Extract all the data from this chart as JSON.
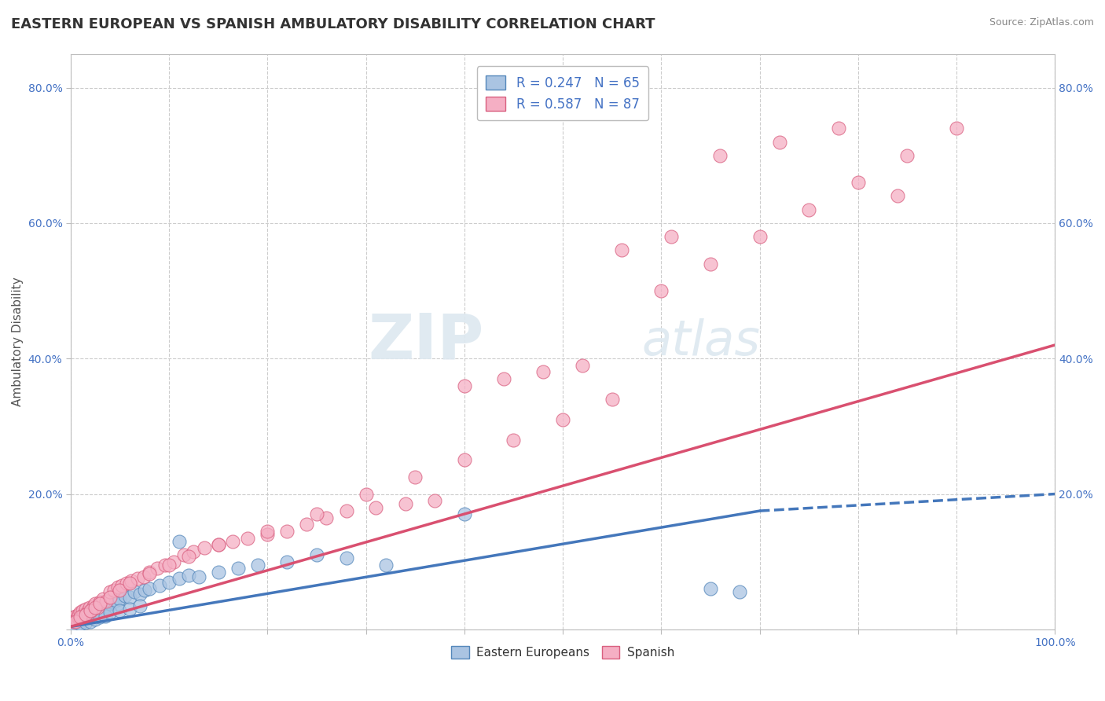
{
  "title": "EASTERN EUROPEAN VS SPANISH AMBULATORY DISABILITY CORRELATION CHART",
  "source": "Source: ZipAtlas.com",
  "ylabel": "Ambulatory Disability",
  "xlim": [
    0,
    1.0
  ],
  "ylim": [
    0,
    0.85
  ],
  "x_ticks": [
    0.0,
    0.1,
    0.2,
    0.3,
    0.4,
    0.5,
    0.6,
    0.7,
    0.8,
    0.9,
    1.0
  ],
  "x_tick_labels": [
    "0.0%",
    "",
    "",
    "",
    "",
    "",
    "",
    "",
    "",
    "",
    "100.0%"
  ],
  "y_ticks": [
    0.0,
    0.2,
    0.4,
    0.6,
    0.8
  ],
  "y_tick_labels": [
    "",
    "20.0%",
    "40.0%",
    "60.0%",
    "80.0%"
  ],
  "blue_R": 0.247,
  "blue_N": 65,
  "pink_R": 0.587,
  "pink_N": 87,
  "blue_color": "#aac4e2",
  "pink_color": "#f5afc4",
  "blue_edge_color": "#5588bb",
  "pink_edge_color": "#d96080",
  "blue_line_color": "#4477bb",
  "pink_line_color": "#d95070",
  "blue_scatter_x": [
    0.002,
    0.003,
    0.004,
    0.005,
    0.006,
    0.007,
    0.008,
    0.009,
    0.01,
    0.011,
    0.012,
    0.013,
    0.014,
    0.015,
    0.016,
    0.017,
    0.018,
    0.019,
    0.02,
    0.022,
    0.024,
    0.026,
    0.028,
    0.03,
    0.032,
    0.035,
    0.038,
    0.04,
    0.042,
    0.045,
    0.048,
    0.05,
    0.055,
    0.06,
    0.065,
    0.07,
    0.075,
    0.08,
    0.09,
    0.1,
    0.11,
    0.12,
    0.13,
    0.15,
    0.17,
    0.19,
    0.22,
    0.25,
    0.28,
    0.32,
    0.005,
    0.01,
    0.015,
    0.02,
    0.025,
    0.03,
    0.035,
    0.04,
    0.05,
    0.06,
    0.07,
    0.11,
    0.4,
    0.65,
    0.68
  ],
  "blue_scatter_y": [
    0.01,
    0.008,
    0.012,
    0.015,
    0.01,
    0.012,
    0.014,
    0.01,
    0.018,
    0.016,
    0.02,
    0.015,
    0.018,
    0.022,
    0.016,
    0.02,
    0.025,
    0.018,
    0.022,
    0.025,
    0.028,
    0.03,
    0.025,
    0.032,
    0.028,
    0.035,
    0.03,
    0.038,
    0.04,
    0.042,
    0.038,
    0.045,
    0.05,
    0.048,
    0.055,
    0.052,
    0.058,
    0.06,
    0.065,
    0.07,
    0.075,
    0.08,
    0.078,
    0.085,
    0.09,
    0.095,
    0.1,
    0.11,
    0.105,
    0.095,
    0.005,
    0.008,
    0.01,
    0.012,
    0.015,
    0.018,
    0.02,
    0.025,
    0.028,
    0.03,
    0.035,
    0.13,
    0.17,
    0.06,
    0.055
  ],
  "pink_scatter_x": [
    0.002,
    0.003,
    0.004,
    0.005,
    0.006,
    0.007,
    0.008,
    0.009,
    0.01,
    0.011,
    0.012,
    0.013,
    0.015,
    0.017,
    0.019,
    0.021,
    0.023,
    0.025,
    0.027,
    0.03,
    0.033,
    0.036,
    0.04,
    0.044,
    0.048,
    0.052,
    0.057,
    0.062,
    0.068,
    0.074,
    0.08,
    0.088,
    0.096,
    0.105,
    0.115,
    0.125,
    0.136,
    0.15,
    0.165,
    0.18,
    0.2,
    0.22,
    0.24,
    0.26,
    0.28,
    0.31,
    0.34,
    0.37,
    0.4,
    0.44,
    0.48,
    0.52,
    0.56,
    0.61,
    0.66,
    0.72,
    0.78,
    0.84,
    0.005,
    0.01,
    0.015,
    0.02,
    0.025,
    0.03,
    0.04,
    0.05,
    0.06,
    0.08,
    0.1,
    0.12,
    0.15,
    0.2,
    0.25,
    0.3,
    0.35,
    0.4,
    0.45,
    0.5,
    0.55,
    0.6,
    0.65,
    0.7,
    0.75,
    0.8,
    0.85,
    0.9
  ],
  "pink_scatter_y": [
    0.015,
    0.012,
    0.018,
    0.02,
    0.015,
    0.018,
    0.022,
    0.016,
    0.025,
    0.02,
    0.028,
    0.022,
    0.03,
    0.025,
    0.032,
    0.028,
    0.035,
    0.038,
    0.032,
    0.04,
    0.045,
    0.042,
    0.055,
    0.058,
    0.062,
    0.065,
    0.068,
    0.072,
    0.075,
    0.078,
    0.085,
    0.09,
    0.095,
    0.1,
    0.11,
    0.115,
    0.12,
    0.125,
    0.13,
    0.135,
    0.14,
    0.145,
    0.155,
    0.165,
    0.175,
    0.18,
    0.185,
    0.19,
    0.36,
    0.37,
    0.38,
    0.39,
    0.56,
    0.58,
    0.7,
    0.72,
    0.74,
    0.64,
    0.012,
    0.018,
    0.022,
    0.028,
    0.032,
    0.038,
    0.048,
    0.058,
    0.068,
    0.082,
    0.095,
    0.108,
    0.125,
    0.145,
    0.17,
    0.2,
    0.225,
    0.25,
    0.28,
    0.31,
    0.34,
    0.5,
    0.54,
    0.58,
    0.62,
    0.66,
    0.7,
    0.74
  ],
  "blue_trend_x0": 0.0,
  "blue_trend_x1": 0.7,
  "blue_trend_x1_dash": 1.0,
  "blue_trend_y0": 0.004,
  "blue_trend_y1": 0.175,
  "blue_trend_y1_dash": 0.2,
  "pink_trend_x0": 0.0,
  "pink_trend_x1": 1.0,
  "pink_trend_y0": 0.004,
  "pink_trend_y1": 0.42,
  "background_color": "#ffffff",
  "grid_color": "#cccccc",
  "title_fontsize": 13,
  "axis_label_fontsize": 11,
  "tick_fontsize": 10,
  "legend_fontsize": 12
}
